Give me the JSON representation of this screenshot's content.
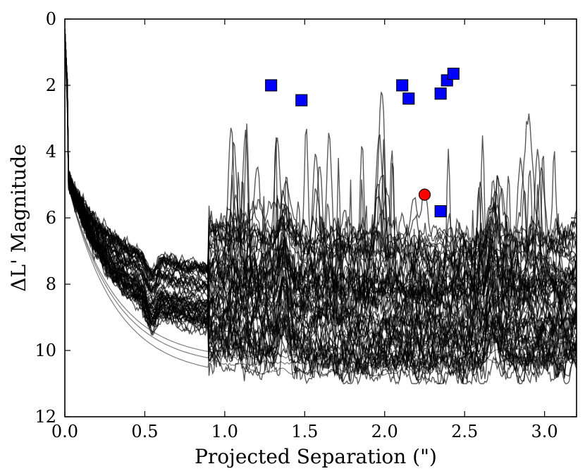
{
  "chart_data": {
    "type": "scatter",
    "title": "",
    "xlabel": "Projected Separation (\")",
    "ylabel": "ΔL' Magnitude",
    "xlim": [
      0,
      3.2
    ],
    "ylim": [
      12,
      0
    ],
    "y_inverted": true,
    "x_ticks": [
      0.0,
      0.5,
      1.0,
      1.5,
      2.0,
      2.5,
      3.0
    ],
    "x_tick_labels": [
      "0.0",
      "0.5",
      "1.0",
      "1.5",
      "2.0",
      "2.5",
      "3.0"
    ],
    "y_ticks": [
      0,
      2,
      4,
      6,
      8,
      10,
      12
    ],
    "y_tick_labels": [
      "0",
      "2",
      "4",
      "6",
      "8",
      "10",
      "12"
    ],
    "grid": false,
    "series": [
      {
        "name": "blue-squares",
        "marker": "square",
        "color": "#0000ff",
        "points": [
          {
            "x": 1.29,
            "y": 2.0
          },
          {
            "x": 1.48,
            "y": 2.45
          },
          {
            "x": 2.11,
            "y": 2.0
          },
          {
            "x": 2.15,
            "y": 2.4
          },
          {
            "x": 2.35,
            "y": 2.25
          },
          {
            "x": 2.39,
            "y": 1.85
          },
          {
            "x": 2.43,
            "y": 1.65
          },
          {
            "x": 2.35,
            "y": 5.8
          }
        ]
      },
      {
        "name": "red-circle",
        "marker": "circle",
        "color": "#ff0000",
        "points": [
          {
            "x": 2.25,
            "y": 5.3
          }
        ]
      }
    ],
    "contrast_curves": {
      "color": "#000000",
      "alpha": 0.65,
      "baselines": [
        6.3,
        6.6,
        6.8,
        7.0,
        7.2,
        7.4,
        7.6,
        7.8,
        8.0,
        8.2,
        8.4,
        8.6,
        8.8,
        9.0,
        9.2,
        9.4,
        9.6,
        9.8,
        10.0,
        10.2
      ],
      "deep_envelopes": [
        10.3,
        10.5,
        10.8
      ],
      "bright_limits": [
        3.0,
        3.5,
        4.0,
        4.5
      ]
    }
  }
}
